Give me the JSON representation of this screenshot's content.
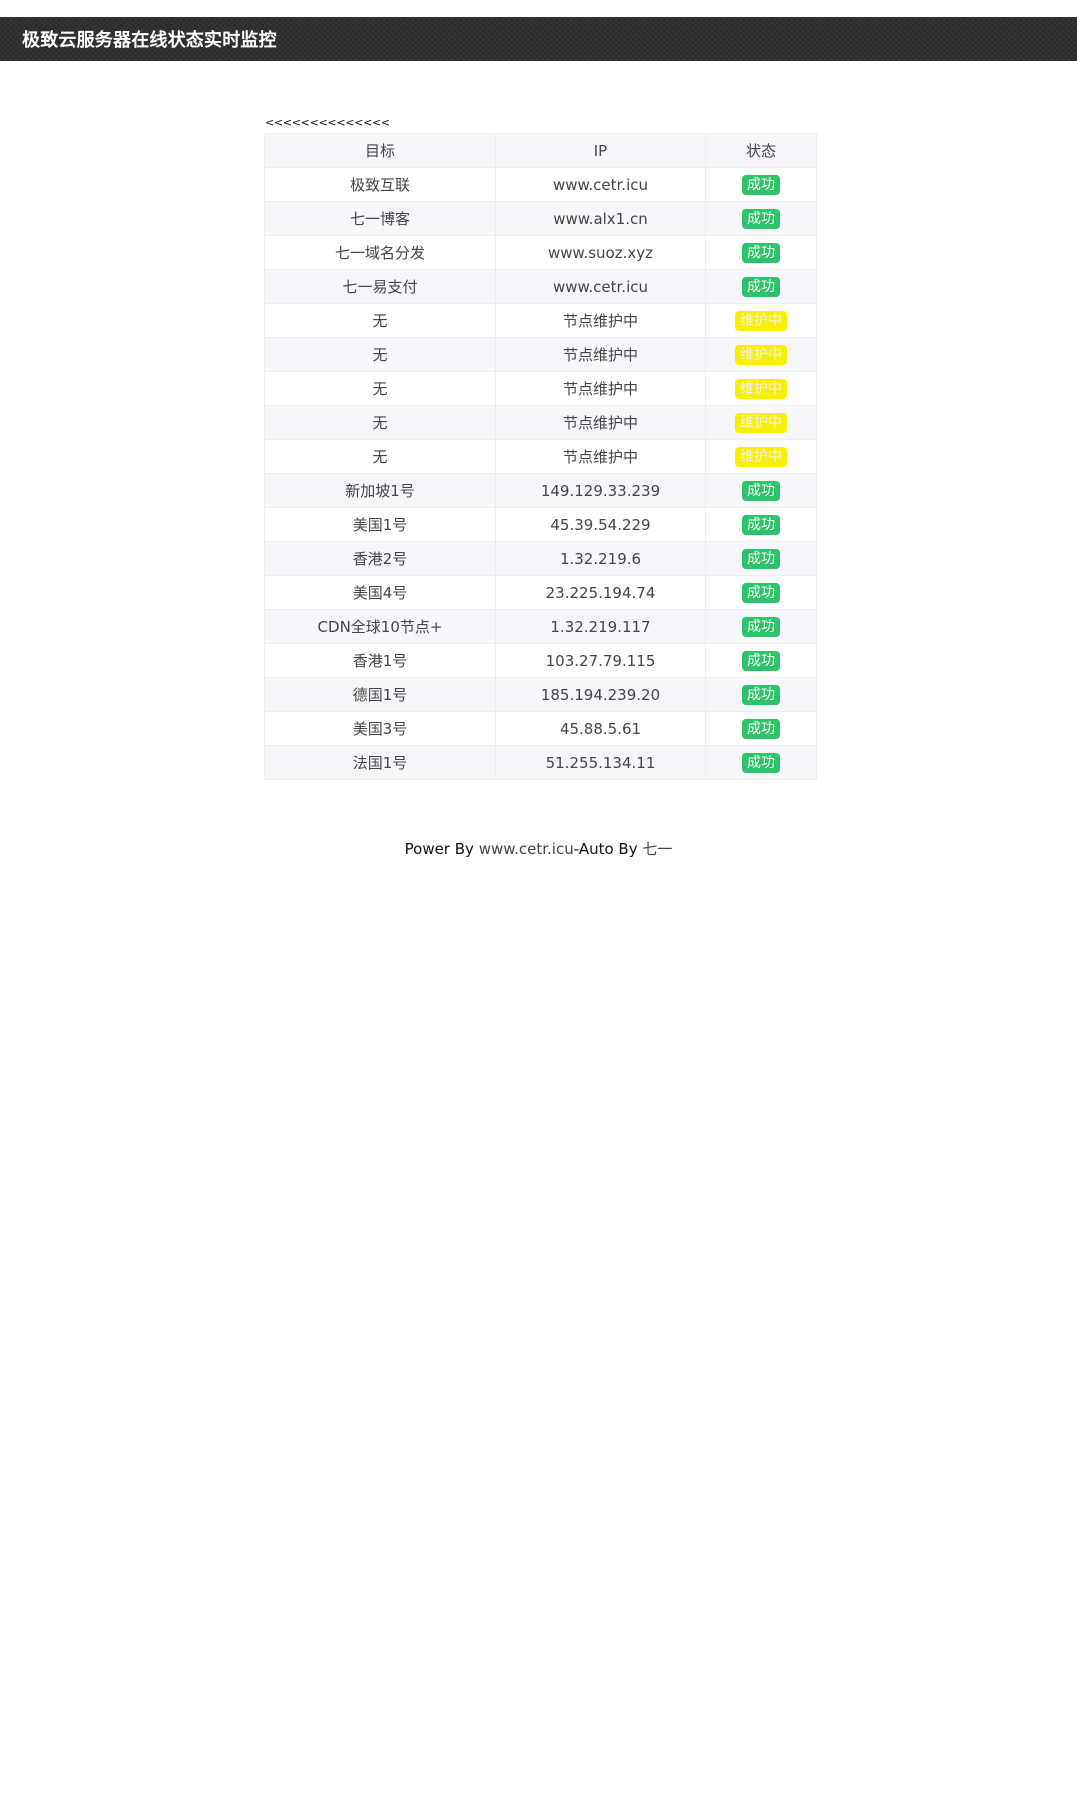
{
  "header": {
    "title": "极致云服务器在线状态实时监控"
  },
  "nav": {
    "back_label": "<<<<<<<<<<<<<<"
  },
  "table": {
    "columns": [
      "目标",
      "IP",
      "状态"
    ],
    "rows": [
      {
        "target": "极致互联",
        "ip": "www.cetr.icu",
        "status": "成功",
        "state": "ok"
      },
      {
        "target": "七一博客",
        "ip": "www.alx1.cn",
        "status": "成功",
        "state": "ok"
      },
      {
        "target": "七一域名分发",
        "ip": "www.suoz.xyz",
        "status": "成功",
        "state": "ok"
      },
      {
        "target": "七一易支付",
        "ip": "www.cetr.icu",
        "status": "成功",
        "state": "ok"
      },
      {
        "target": "无",
        "ip": "节点维护中",
        "status": "维护中",
        "state": "maint"
      },
      {
        "target": "无",
        "ip": "节点维护中",
        "status": "维护中",
        "state": "maint"
      },
      {
        "target": "无",
        "ip": "节点维护中",
        "status": "维护中",
        "state": "maint"
      },
      {
        "target": "无",
        "ip": "节点维护中",
        "status": "维护中",
        "state": "maint"
      },
      {
        "target": "无",
        "ip": "节点维护中",
        "status": "维护中",
        "state": "maint"
      },
      {
        "target": "新加坡1号",
        "ip": "149.129.33.239",
        "status": "成功",
        "state": "ok"
      },
      {
        "target": "美国1号",
        "ip": "45.39.54.229",
        "status": "成功",
        "state": "ok"
      },
      {
        "target": "香港2号",
        "ip": "1.32.219.6",
        "status": "成功",
        "state": "ok"
      },
      {
        "target": "美国4号",
        "ip": "23.225.194.74",
        "status": "成功",
        "state": "ok"
      },
      {
        "target": "CDN全球10节点+",
        "ip": "1.32.219.117",
        "status": "成功",
        "state": "ok"
      },
      {
        "target": "香港1号",
        "ip": "103.27.79.115",
        "status": "成功",
        "state": "ok"
      },
      {
        "target": "德国1号",
        "ip": "185.194.239.20",
        "status": "成功",
        "state": "ok"
      },
      {
        "target": "美国3号",
        "ip": "45.88.5.61",
        "status": "成功",
        "state": "ok"
      },
      {
        "target": "法国1号",
        "ip": "51.255.134.11",
        "status": "成功",
        "state": "ok"
      }
    ]
  },
  "footer": {
    "power_by": "Power By ",
    "site_link": "www.cetr.icu",
    "auto_by": "-Auto By ",
    "author_link": "七一"
  },
  "colors": {
    "header_bg": "#2f2f2f",
    "success_badge": "#2dc36a",
    "maintenance_badge": "#f8f000",
    "row_stripe": "#f5f7fa"
  }
}
